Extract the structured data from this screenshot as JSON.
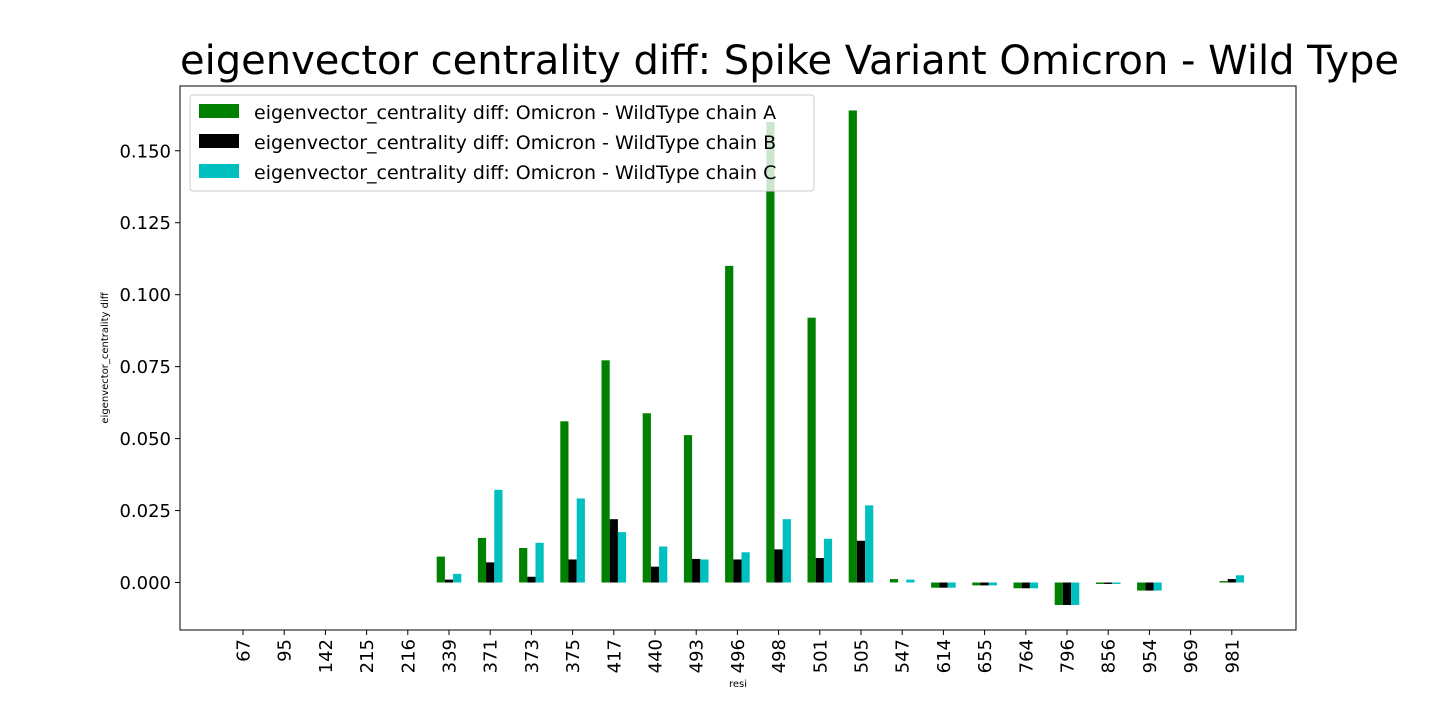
{
  "chart_data": {
    "type": "bar",
    "title": "eigenvector centrality diff: Spike Variant Omicron - Wild Type",
    "xlabel": "resi",
    "ylabel": "eigenvector_centrality diff",
    "categories": [
      "67",
      "95",
      "142",
      "215",
      "216",
      "339",
      "371",
      "373",
      "375",
      "417",
      "440",
      "493",
      "496",
      "498",
      "501",
      "505",
      "547",
      "614",
      "655",
      "764",
      "796",
      "856",
      "954",
      "969",
      "981"
    ],
    "ylim": [
      -0.0165,
      0.1725
    ],
    "yticks": [
      0.0,
      0.025,
      0.05,
      0.075,
      0.1,
      0.125,
      0.15
    ],
    "ytick_labels": [
      "0.000",
      "0.025",
      "0.050",
      "0.075",
      "0.100",
      "0.125",
      "0.150"
    ],
    "grid": false,
    "legend_position": "top-left",
    "series": [
      {
        "name": "eigenvector_centrality diff: Omicron - WildType chain A",
        "color": "#008000",
        "values": [
          0,
          0,
          0,
          0,
          0,
          0.009,
          0.0155,
          0.012,
          0.056,
          0.0772,
          0.0588,
          0.0512,
          0.11,
          0.16,
          0.092,
          0.164,
          0.0012,
          -0.0018,
          -0.001,
          -0.002,
          -0.0078,
          -0.0005,
          -0.0028,
          0,
          0.0005
        ]
      },
      {
        "name": "eigenvector_centrality diff: Omicron - WildType chain B",
        "color": "#000000",
        "values": [
          0,
          0,
          0,
          0,
          0,
          0.001,
          0.007,
          0.002,
          0.008,
          0.022,
          0.0055,
          0.0082,
          0.008,
          0.0115,
          0.0085,
          0.0145,
          0,
          -0.0018,
          -0.001,
          -0.002,
          -0.0078,
          -0.0005,
          -0.0028,
          0,
          0.0012
        ]
      },
      {
        "name": "eigenvector_centrality diff: Omicron - WildType chain C",
        "color": "#00bfbf",
        "values": [
          0,
          0,
          0,
          0,
          0,
          0.003,
          0.0322,
          0.0138,
          0.0292,
          0.0175,
          0.0125,
          0.008,
          0.0105,
          0.022,
          0.0152,
          0.0268,
          0.001,
          -0.0018,
          -0.001,
          -0.002,
          -0.0078,
          -0.0005,
          -0.0028,
          0,
          0.0025
        ]
      }
    ]
  }
}
